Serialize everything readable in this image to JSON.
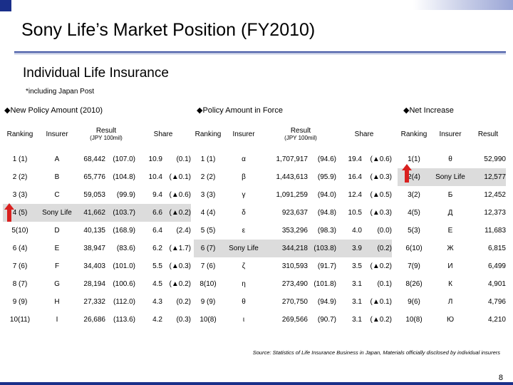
{
  "title": "Sony Life’s Market Position (FY2010)",
  "subtitle": "Individual Life Insurance",
  "footnote": "*including Japan Post",
  "source": "Source: Statistics of Life Insurance Business in Japan, Materials officially disclosed by individual insurers",
  "page_number": "8",
  "colors": {
    "accent": "#1a2f8a",
    "highlight_arrow": "#d9201f",
    "band": "#dcdcdc"
  },
  "sections": {
    "new_policy": "◆New Policy Amount (2010)",
    "in_force": "◆Policy Amount in Force",
    "net_increase": "◆Net Increase"
  },
  "headers": {
    "ranking": "Ranking",
    "insurer": "Insurer",
    "result": "Result",
    "unit": "(JPY 100mil)",
    "share": "Share"
  },
  "new_policy_rows": [
    [
      "1 (1)",
      "A",
      "68,442",
      "(107.0)",
      "10.9",
      "(0.1)"
    ],
    [
      "2 (2)",
      "B",
      "65,776",
      "(104.8)",
      "10.4",
      "(▲0.1)"
    ],
    [
      "3 (3)",
      "C",
      "59,053",
      "(99.9)",
      "9.4",
      "(▲0.6)"
    ],
    [
      "4 (5)",
      "Sony Life",
      "41,662",
      "(103.7)",
      "6.6",
      "(▲0.2)"
    ],
    [
      "5(10)",
      "D",
      "40,135",
      "(168.9)",
      "6.4",
      "(2.4)"
    ],
    [
      "6 (4)",
      "E",
      "38,947",
      "(83.6)",
      "6.2",
      "(▲1.7)"
    ],
    [
      "7 (6)",
      "F",
      "34,403",
      "(101.0)",
      "5.5",
      "(▲0.3)"
    ],
    [
      "8 (7)",
      "G",
      "28,194",
      "(100.6)",
      "4.5",
      "(▲0.2)"
    ],
    [
      "9 (9)",
      "H",
      "27,332",
      "(112.0)",
      "4.3",
      "(0.2)"
    ],
    [
      "10(11)",
      "I",
      "26,686",
      "(113.6)",
      "4.2",
      "(0.3)"
    ]
  ],
  "in_force_rows": [
    [
      "1 (1)",
      "α",
      "1,707,917",
      "(94.6)",
      "19.4",
      "(▲0.6)"
    ],
    [
      "2 (2)",
      "β",
      "1,443,613",
      "(95.9)",
      "16.4",
      "(▲0.3)"
    ],
    [
      "3 (3)",
      "γ",
      "1,091,259",
      "(94.0)",
      "12.4",
      "(▲0.5)"
    ],
    [
      "4 (4)",
      "δ",
      "923,637",
      "(94.8)",
      "10.5",
      "(▲0.3)"
    ],
    [
      "5 (5)",
      "ε",
      "353,296",
      "(98.3)",
      "4.0",
      "(0.0)"
    ],
    [
      "6 (7)",
      "Sony Life",
      "344,218",
      "(103.8)",
      "3.9",
      "(0.2)"
    ],
    [
      "7 (6)",
      "ζ",
      "310,593",
      "(91.7)",
      "3.5",
      "(▲0.2)"
    ],
    [
      "8(10)",
      "η",
      "273,490",
      "(101.8)",
      "3.1",
      "(0.1)"
    ],
    [
      "9 (9)",
      "θ",
      "270,750",
      "(94.9)",
      "3.1",
      "(▲0.1)"
    ],
    [
      "10(8)",
      "ι",
      "269,566",
      "(90.7)",
      "3.1",
      "(▲0.2)"
    ]
  ],
  "net_increase_rows": [
    [
      "1(1)",
      "θ",
      "52,990"
    ],
    [
      "2(4)",
      "Sony Life",
      "12,577"
    ],
    [
      "3(2)",
      "Б",
      "12,452"
    ],
    [
      "4(5)",
      "Д",
      "12,373"
    ],
    [
      "5(3)",
      "Е",
      "11,683"
    ],
    [
      "6(10)",
      "Ж",
      "6,815"
    ],
    [
      "7(9)",
      "И",
      "6,499"
    ],
    [
      "8(26)",
      "К",
      "4,901"
    ],
    [
      "9(6)",
      "Л",
      "4,796"
    ],
    [
      "10(8)",
      "Ю",
      "4,210"
    ]
  ]
}
